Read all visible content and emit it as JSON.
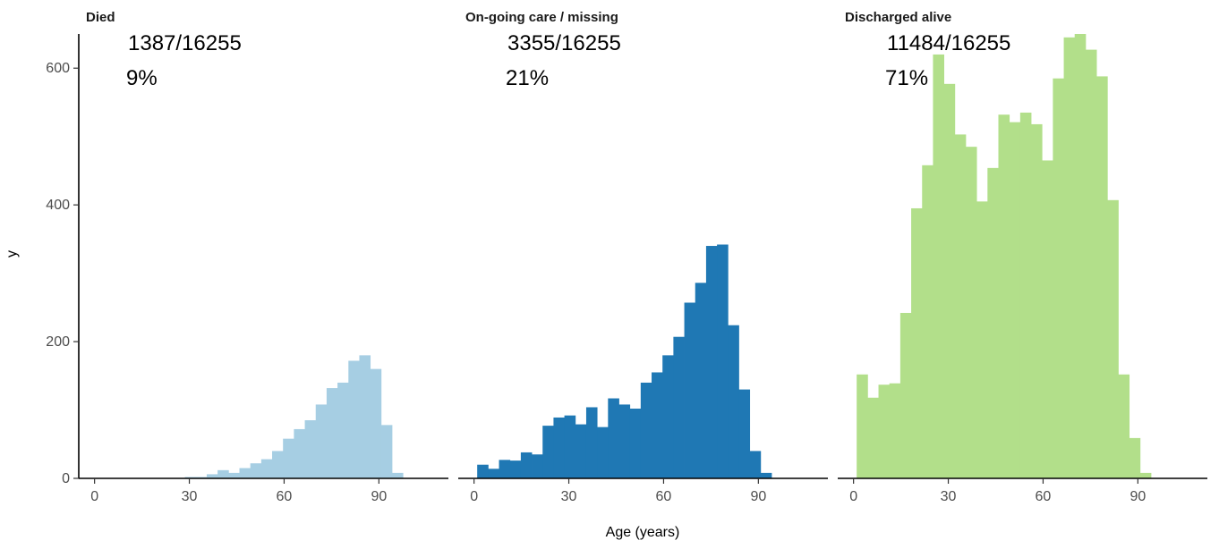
{
  "chart_data": {
    "type": "bar",
    "subtype": "faceted-histogram",
    "xlabel": "Age (years)",
    "ylabel": "y",
    "xlim": [
      -5,
      112
    ],
    "ylim": [
      0,
      650
    ],
    "x_ticks": [
      0,
      30,
      60,
      90
    ],
    "y_ticks": [
      0,
      200,
      400,
      600
    ],
    "bin_width": 3.45,
    "bin_start": 1.0,
    "grid": false,
    "legend": "none",
    "panels": [
      {
        "title": "Died",
        "count_label": "1387/16255",
        "pct_label": "9%",
        "color": "#a6cee3",
        "values": [
          0,
          0,
          0,
          0,
          0,
          0,
          0,
          0,
          2,
          2,
          6,
          12,
          8,
          15,
          22,
          28,
          40,
          58,
          72,
          85,
          108,
          132,
          140,
          172,
          180,
          160,
          78,
          8,
          0,
          0,
          0
        ]
      },
      {
        "title": "On-going care / missing",
        "count_label": "3355/16255",
        "pct_label": "21%",
        "color": "#1f78b4",
        "values": [
          20,
          14,
          27,
          26,
          38,
          35,
          77,
          89,
          92,
          79,
          104,
          75,
          117,
          108,
          102,
          140,
          155,
          180,
          207,
          257,
          286,
          340,
          342,
          224,
          130,
          40,
          8,
          0,
          0,
          0,
          0
        ]
      },
      {
        "title": "Discharged alive",
        "count_label": "11484/16255",
        "pct_label": "71%",
        "color": "#b2df8a",
        "values": [
          152,
          118,
          137,
          139,
          242,
          395,
          458,
          620,
          577,
          503,
          485,
          405,
          454,
          532,
          521,
          535,
          518,
          465,
          585,
          645,
          650,
          627,
          588,
          407,
          152,
          59,
          8,
          0,
          0,
          0,
          0
        ]
      }
    ]
  }
}
